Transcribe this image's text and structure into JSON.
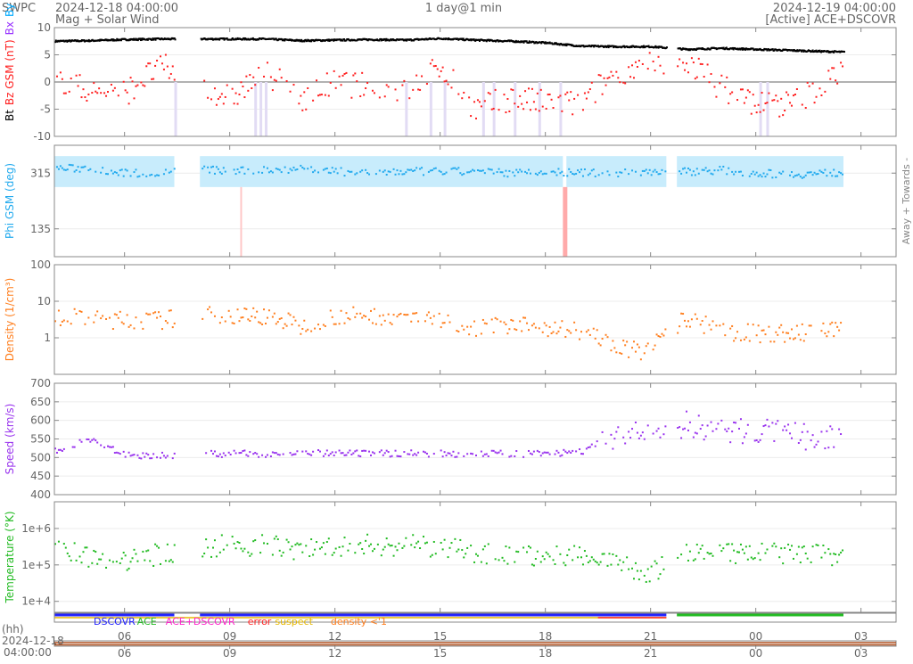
{
  "header": {
    "org": "SWPC",
    "start_time": "2024-12-18 04:00:00",
    "subtitle": "Mag + Solar Wind",
    "resolution": "1 day@1 min",
    "end_time": "2024-12-19 04:00:00",
    "source": "[Active] ACE+DSCOVR"
  },
  "colors": {
    "bt": "#000000",
    "bz": "#ff2020",
    "bx": "#9933ff",
    "by": "#00aaff",
    "phi": "#22aaee",
    "phi_fill": "#c8ecfc",
    "phi_away": "#ffc8c8",
    "density": "#ff7f1f",
    "speed": "#9933ee",
    "temp": "#22bb22",
    "dscovr": "#2222ff",
    "ace": "#22bb22",
    "both": "#ff22cc",
    "error": "#ff2222",
    "suspect": "#e6b800",
    "lowdens": "#ff7f1f"
  },
  "chart_data": {
    "type": "scatter",
    "title": "Mag + Solar Wind",
    "x_axis": {
      "label": "(hh)",
      "start": "2024-12-18 04:00:00",
      "end": "2024-12-19 04:00:00",
      "ticks": [
        "06",
        "09",
        "12",
        "15",
        "18",
        "21",
        "00",
        "03"
      ]
    },
    "hours": [
      4,
      5,
      6,
      7,
      8,
      9,
      10,
      11,
      12,
      13,
      14,
      15,
      16,
      17,
      18,
      19,
      20,
      21,
      22,
      23,
      24,
      25,
      26
    ],
    "gaps_hours": [
      [
        7.42,
        8.15
      ],
      [
        21.45,
        21.75
      ],
      [
        26.5,
        28
      ]
    ],
    "panels": [
      {
        "name": "mag",
        "ylabel_parts": [
          "Bt",
          "Bz GSM (nT)",
          "Bx",
          "By"
        ],
        "ylim": [
          -10,
          10
        ],
        "ticks": [
          "10",
          "5",
          "0",
          "-5",
          "-10"
        ],
        "series": [
          {
            "name": "Bt",
            "values": [
              7.5,
              7.6,
              7.8,
              7.9,
              7.9,
              7.9,
              7.9,
              7.6,
              7.7,
              7.8,
              7.7,
              8,
              7.7,
              7.5,
              7.2,
              6.6,
              6.5,
              6.5,
              6,
              6.2,
              6,
              5.8,
              5.6
            ]
          },
          {
            "name": "Bz",
            "values": [
              1,
              -2,
              -2,
              3,
              0,
              -3,
              2,
              -3,
              0,
              -1,
              -2,
              3,
              -5,
              -3,
              -4,
              -4,
              2,
              3,
              4,
              -1,
              -4,
              -4,
              0
            ]
          }
        ]
      },
      {
        "name": "phi",
        "ylabel": "Phi GSM (deg)",
        "right_label": "Away +  Towards -",
        "ylim": [
          45,
          405
        ],
        "ticks": [
          "315",
          "135"
        ],
        "series": [
          {
            "name": "Phi",
            "values": [
              330,
              330,
              315,
              315,
              330,
              320,
              325,
              330,
              320,
              315,
              320,
              320,
              320,
              315,
              320,
              315,
              315,
              320,
              320,
              325,
              315,
              310,
              315
            ]
          }
        ]
      },
      {
        "name": "density",
        "ylabel": "Density (1/cm³)",
        "scale": "log",
        "ylim": [
          0.1,
          100
        ],
        "ticks": [
          "100",
          "10",
          "1"
        ],
        "series": [
          {
            "name": "Density",
            "values": [
              4,
              3,
              3,
              3,
              4,
              4,
              4,
              2,
              4,
              4,
              4,
              3,
              2,
              2,
              2,
              1.5,
              0.5,
              0.4,
              3,
              1.5,
              1.3,
              1.3,
              1.5
            ]
          }
        ]
      },
      {
        "name": "speed",
        "ylabel": "Speed (km/s)",
        "ylim": [
          400,
          700
        ],
        "ticks": [
          "700",
          "650",
          "600",
          "550",
          "500",
          "450",
          "400"
        ],
        "series": [
          {
            "name": "Speed",
            "values": [
              520,
              550,
              505,
              505,
              510,
              510,
              510,
              512,
              510,
              510,
              512,
              510,
              510,
              510,
              510,
              515,
              560,
              560,
              590,
              570,
              570,
              560,
              550
            ]
          }
        ]
      },
      {
        "name": "temperature",
        "ylabel": "Temperature (°K)",
        "scale": "log",
        "ylim": [
          5000,
          5400000
        ],
        "ticks": [
          "1e+6",
          "1e+5",
          "1e+4"
        ],
        "series": [
          {
            "name": "Temperature",
            "values": [
              300000,
              150000,
              120000,
              200000,
              300000,
              350000,
              350000,
              250000,
              350000,
              350000,
              350000,
              300000,
              200000,
              200000,
              150000,
              200000,
              100000,
              50000,
              200000,
              200000,
              200000,
              200000,
              180000
            ]
          }
        ]
      }
    ],
    "legend": [
      {
        "label": "DSCOVR",
        "color": "#2222ff"
      },
      {
        "label": "ACE",
        "color": "#22bb22"
      },
      {
        "label": "ACE+DSCOVR",
        "color": "#ff22cc"
      },
      {
        "label": "error",
        "color": "#ff2222"
      },
      {
        "label": "suspect",
        "color": "#e6b800"
      },
      {
        "label": "density <'1",
        "color": "#ff7f1f"
      }
    ],
    "overview": {
      "date": "2024-12-18",
      "time": "04:00:00"
    }
  }
}
